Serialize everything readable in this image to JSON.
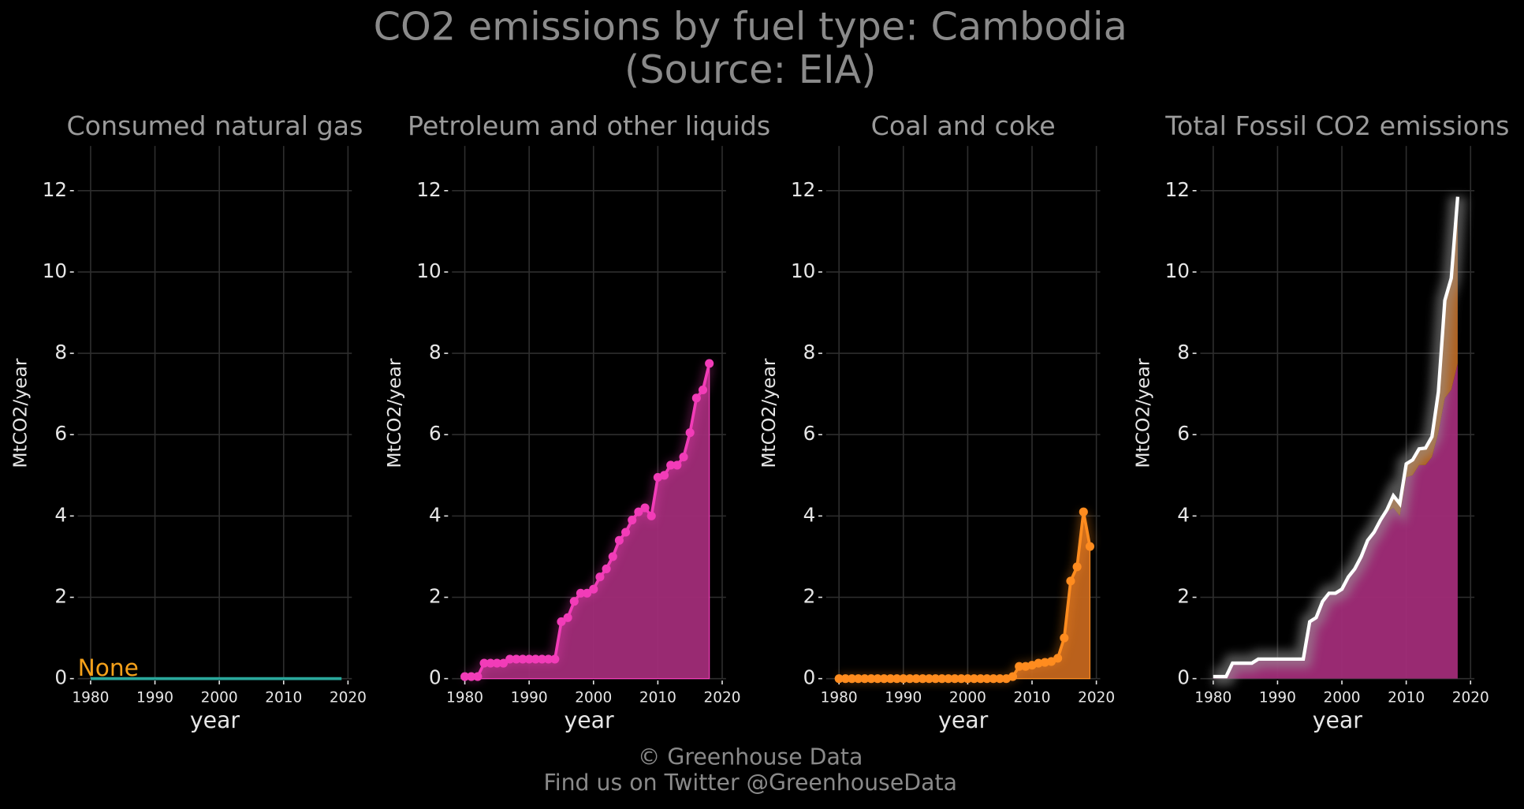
{
  "title": [
    "CO2 emissions by fuel type: Cambodia",
    "(Source: EIA)"
  ],
  "footer": [
    "© Greenhouse Data",
    "Find us on Twitter @GreenhouseData"
  ],
  "chart_data": [
    {
      "type": "line",
      "title": "Consumed natural gas",
      "xlabel": "year",
      "ylabel": "MtCO2/year",
      "annotation": "None",
      "annotation_color": "#f5a11a",
      "x": [
        1980,
        2019
      ],
      "series": [
        {
          "color": "#2aa79b",
          "values": [
            0,
            0
          ]
        }
      ],
      "markers": false,
      "xlim": [
        1978,
        2020.6
      ],
      "xticks": [
        1980,
        1990,
        2000,
        2010,
        2020
      ],
      "ylim": [
        0,
        13.1
      ],
      "yticks": [
        0,
        2,
        4,
        6,
        8,
        10,
        12
      ],
      "grid": true
    },
    {
      "type": "area",
      "title": "Petroleum and other liquids",
      "xlabel": "year",
      "ylabel": "MtCO2/year",
      "x": [
        1980,
        1981,
        1982,
        1983,
        1984,
        1985,
        1986,
        1987,
        1988,
        1989,
        1990,
        1991,
        1992,
        1993,
        1994,
        1995,
        1996,
        1997,
        1998,
        1999,
        2000,
        2001,
        2002,
        2003,
        2004,
        2005,
        2006,
        2007,
        2008,
        2009,
        2010,
        2011,
        2012,
        2013,
        2014,
        2015,
        2016,
        2017,
        2018
      ],
      "series": [
        {
          "color": "#f23cb8",
          "fill": "#a12c78",
          "values": [
            0.05,
            0.05,
            0.05,
            0.38,
            0.38,
            0.38,
            0.38,
            0.48,
            0.48,
            0.48,
            0.48,
            0.48,
            0.48,
            0.48,
            0.48,
            1.4,
            1.5,
            1.9,
            2.1,
            2.1,
            2.2,
            2.5,
            2.7,
            3.0,
            3.4,
            3.6,
            3.9,
            4.1,
            4.2,
            4.0,
            4.95,
            5.0,
            5.25,
            5.25,
            5.45,
            6.05,
            6.9,
            7.1,
            7.75
          ]
        }
      ],
      "markers": true,
      "xlim": [
        1978,
        2020.6
      ],
      "xticks": [
        1980,
        1990,
        2000,
        2010,
        2020
      ],
      "ylim": [
        0,
        13.1
      ],
      "yticks": [
        0,
        2,
        4,
        6,
        8,
        10,
        12
      ],
      "grid": true
    },
    {
      "type": "area",
      "title": "Coal and coke",
      "xlabel": "year",
      "ylabel": "MtCO2/year",
      "x": [
        1980,
        1981,
        1982,
        1983,
        1984,
        1985,
        1986,
        1987,
        1988,
        1989,
        1990,
        1991,
        1992,
        1993,
        1994,
        1995,
        1996,
        1997,
        1998,
        1999,
        2000,
        2001,
        2002,
        2003,
        2004,
        2005,
        2006,
        2007,
        2008,
        2009,
        2010,
        2011,
        2012,
        2013,
        2014,
        2015,
        2016,
        2017,
        2018,
        2019
      ],
      "series": [
        {
          "color": "#ff8c1f",
          "fill": "#c4661e",
          "values": [
            0,
            0,
            0,
            0,
            0,
            0,
            0,
            0,
            0,
            0,
            0,
            0,
            0,
            0,
            0,
            0,
            0,
            0,
            0,
            0,
            0,
            0,
            0,
            0,
            0,
            0,
            0,
            0.05,
            0.3,
            0.3,
            0.33,
            0.38,
            0.4,
            0.42,
            0.5,
            1.0,
            2.4,
            2.75,
            4.1,
            3.25
          ]
        }
      ],
      "markers": true,
      "xlim": [
        1978,
        2020.6
      ],
      "xticks": [
        1980,
        1990,
        2000,
        2010,
        2020
      ],
      "ylim": [
        0,
        13.1
      ],
      "yticks": [
        0,
        2,
        4,
        6,
        8,
        10,
        12
      ],
      "grid": true
    },
    {
      "type": "stacked_area",
      "title": "Total Fossil CO2 emissions",
      "xlabel": "year",
      "ylabel": "MtCO2/year",
      "x": [
        1980,
        1981,
        1982,
        1983,
        1984,
        1985,
        1986,
        1987,
        1988,
        1989,
        1990,
        1991,
        1992,
        1993,
        1994,
        1995,
        1996,
        1997,
        1998,
        1999,
        2000,
        2001,
        2002,
        2003,
        2004,
        2005,
        2006,
        2007,
        2008,
        2009,
        2010,
        2011,
        2012,
        2013,
        2014,
        2015,
        2016,
        2017,
        2018
      ],
      "series": [
        {
          "color": "#f23cb8",
          "fill": "#a12c78",
          "values": [
            0.05,
            0.05,
            0.05,
            0.38,
            0.38,
            0.38,
            0.38,
            0.48,
            0.48,
            0.48,
            0.48,
            0.48,
            0.48,
            0.48,
            0.48,
            1.4,
            1.5,
            1.9,
            2.1,
            2.1,
            2.2,
            2.5,
            2.7,
            3.0,
            3.4,
            3.6,
            3.9,
            4.1,
            4.2,
            4.0,
            4.95,
            5.0,
            5.25,
            5.25,
            5.45,
            6.05,
            6.9,
            7.1,
            7.75
          ]
        },
        {
          "color": "#ff8c1f",
          "fill": "#b8651f",
          "values": [
            0,
            0,
            0,
            0,
            0,
            0,
            0,
            0,
            0,
            0,
            0,
            0,
            0,
            0,
            0,
            0,
            0,
            0,
            0,
            0,
            0,
            0,
            0,
            0,
            0,
            0,
            0,
            0.05,
            0.3,
            0.3,
            0.33,
            0.38,
            0.4,
            0.42,
            0.5,
            1.0,
            2.4,
            2.75,
            4.1
          ]
        }
      ],
      "total_line_color": "#ffffff",
      "markers": false,
      "xlim": [
        1978,
        2020.6
      ],
      "xticks": [
        1980,
        1990,
        2000,
        2010,
        2020
      ],
      "ylim": [
        0,
        13.1
      ],
      "yticks": [
        0,
        2,
        4,
        6,
        8,
        10,
        12
      ],
      "grid": true
    }
  ]
}
